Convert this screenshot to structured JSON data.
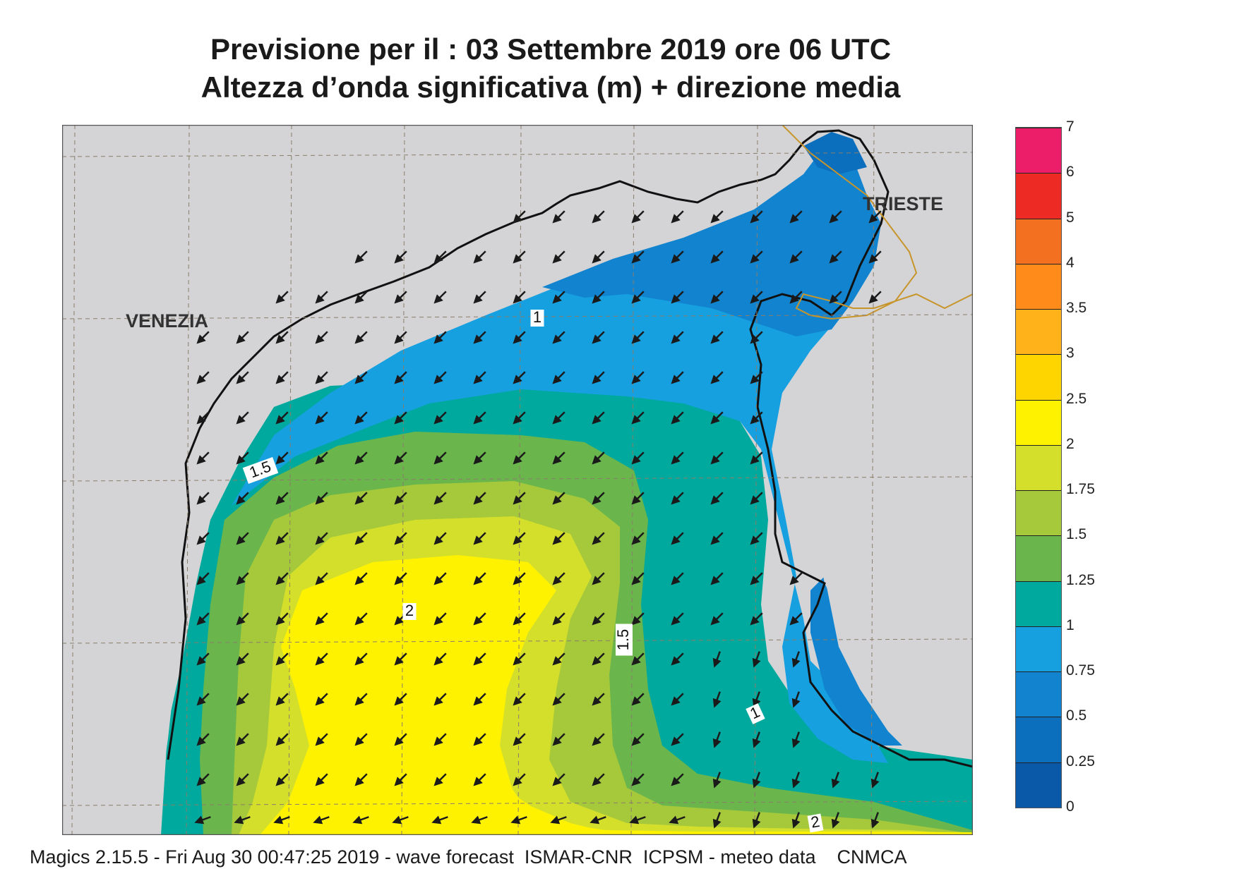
{
  "title": {
    "line1": "Previsione per il  :  03 Settembre 2019   ore 06 UTC",
    "line2": "Altezza d’onda significativa (m) + direzione media"
  },
  "cities": [
    {
      "id": "venezia",
      "name": "VENEZIA"
    },
    {
      "id": "trieste",
      "name": "TRIESTE"
    }
  ],
  "contour_labels": [
    "1",
    "1.5",
    "2",
    "1.5",
    "1",
    "2"
  ],
  "colorbar": {
    "unit": "m",
    "labels": [
      "0",
      "0.25",
      "0.5",
      "0.75",
      "1",
      "1.25",
      "1.5",
      "1.75",
      "2",
      "2.5",
      "3",
      "3.5",
      "4",
      "5",
      "6",
      "7"
    ],
    "colors": [
      "#0a59a8",
      "#0b6fbd",
      "#1284cf",
      "#16a0e0",
      "#00a99d",
      "#6ab64c",
      "#a6c83b",
      "#d4df2c",
      "#fff200",
      "#ffd500",
      "#ffb21a",
      "#ff8c1a",
      "#f47021",
      "#ee2a24",
      "#ec1d69"
    ]
  },
  "map_colors": {
    "land": "#d4d4d6",
    "border": "#c8952a",
    "arrow": "#1a1a1a"
  },
  "wave_direction": "from NE (arrows pointing SW)",
  "footer": "Magics 2.15.5 - Fri Aug 30 00:47:25 2019 - wave forecast  ISMAR-CNR  ICPSM - meteo data    CNMCA"
}
